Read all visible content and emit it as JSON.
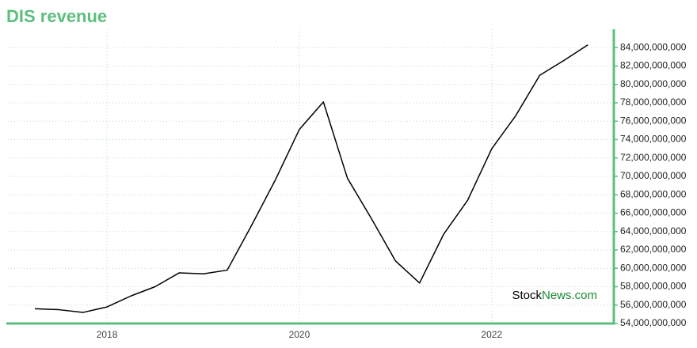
{
  "title": "DIS revenue",
  "watermark": {
    "prefix": "Stock",
    "suffix": "News.com"
  },
  "chart_data": {
    "type": "line",
    "x": [
      2017.25,
      2017.5,
      2017.75,
      2018.0,
      2018.25,
      2018.5,
      2018.75,
      2019.0,
      2019.25,
      2019.5,
      2019.75,
      2020.0,
      2020.25,
      2020.5,
      2020.75,
      2021.0,
      2021.25,
      2021.5,
      2021.75,
      2022.0,
      2022.25,
      2022.5,
      2022.75,
      2023.0
    ],
    "values": [
      55600000000,
      55500000000,
      55200000000,
      55800000000,
      57000000000,
      58000000000,
      59500000000,
      59400000000,
      59800000000,
      64600000000,
      69600000000,
      75100000000,
      78100000000,
      69800000000,
      65400000000,
      60800000000,
      58400000000,
      63700000000,
      67400000000,
      73000000000,
      76600000000,
      81000000000,
      82600000000,
      84300000000
    ],
    "color": "#000000",
    "axis_color": "#5dbe7e",
    "xlim": [
      2016.97,
      2023.27
    ],
    "xticks": [
      2018,
      2020,
      2022
    ],
    "ylim": [
      54000000000,
      86000000000
    ],
    "yticks": [
      {
        "value": 54000000000,
        "label": "54,000,000,000"
      },
      {
        "value": 56000000000,
        "label": "56,000,000,000"
      },
      {
        "value": 58000000000,
        "label": "58,000,000,000"
      },
      {
        "value": 60000000000,
        "label": "60,000,000,000"
      },
      {
        "value": 62000000000,
        "label": "62,000,000,000"
      },
      {
        "value": 64000000000,
        "label": "64,000,000,000"
      },
      {
        "value": 66000000000,
        "label": "66,000,000,000"
      },
      {
        "value": 68000000000,
        "label": "68,000,000,000"
      },
      {
        "value": 70000000000,
        "label": "70,000,000,000"
      },
      {
        "value": 72000000000,
        "label": "72,000,000,000"
      },
      {
        "value": 74000000000,
        "label": "74,000,000,000"
      },
      {
        "value": 76000000000,
        "label": "76,000,000,000"
      },
      {
        "value": 78000000000,
        "label": "78,000,000,000"
      },
      {
        "value": 80000000000,
        "label": "80,000,000,000"
      },
      {
        "value": 82000000000,
        "label": "82,000,000,000"
      },
      {
        "value": 84000000000,
        "label": "84,000,000,000"
      }
    ],
    "grid": true
  }
}
